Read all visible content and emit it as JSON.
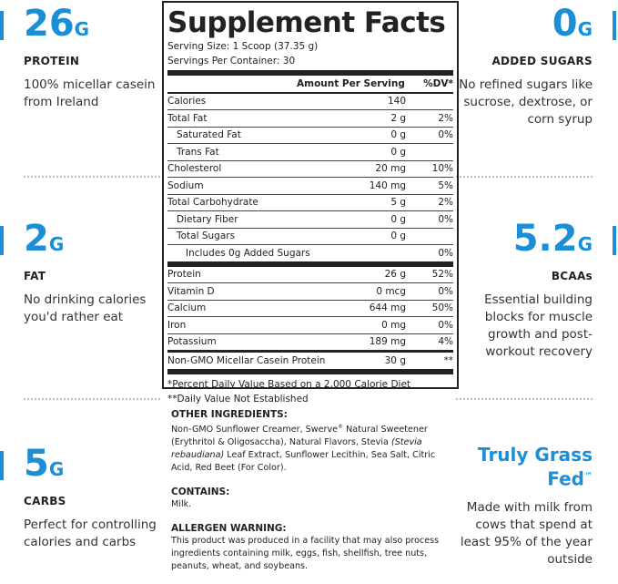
{
  "left": [
    {
      "value": "26",
      "unit": "G",
      "label": "PROTEIN",
      "text": "100% micellar casein from Ireland"
    },
    {
      "value": "2",
      "unit": "G",
      "label": "FAT",
      "text": "No drinking calories you'd rather eat"
    },
    {
      "value": "5",
      "unit": "G",
      "label": "CARBS",
      "text": "Perfect for controlling calories and carbs"
    }
  ],
  "right": [
    {
      "value": "0",
      "unit": "G",
      "label": "ADDED SUGARS",
      "text": "No refined sugars like sucrose, dextrose, or corn syrup"
    },
    {
      "value": "5.2",
      "unit": "G",
      "label": "BCAAs",
      "text": "Essential building blocks for muscle growth and post-workout recovery"
    },
    {
      "title": "Truly Grass Fed",
      "mark": "™",
      "text": "Made with milk from cows that spend at least 95% of the year outside"
    }
  ],
  "facts": {
    "title": "Supplement Facts",
    "serving_size": "Serving Size: 1 Scoop (37.35 g)",
    "servings": "Servings Per Container: 30",
    "header": [
      "Amount Per Serving",
      "%DV*"
    ],
    "groups": [
      [
        {
          "name": "Calories",
          "amount": "140"
        },
        {
          "name": "Total Fat",
          "amount": "2 g",
          "dv": "2%",
          "sub": [
            {
              "name": "Saturated Fat",
              "amount": "0 g",
              "dv": "0%"
            },
            {
              "name": "Trans Fat",
              "amount": "0 g"
            }
          ]
        },
        {
          "name": "Cholesterol",
          "amount": "20 mg",
          "dv": "10%"
        },
        {
          "name": "Sodium",
          "amount": "140 mg",
          "dv": "5%"
        },
        {
          "name": "Total Carbohydrate",
          "amount": "5 g",
          "dv": "2%",
          "sub": [
            {
              "name": "Dietary Fiber",
              "amount": "0 g",
              "dv": "0%"
            },
            {
              "name": "Total Sugars",
              "amount": "0 g",
              "sub": [
                {
                  "name": "Includes 0g Added Sugars",
                  "dv": "0%"
                }
              ]
            }
          ]
        }
      ],
      [
        {
          "name": "Protein",
          "amount": "26 g",
          "dv": "52%"
        },
        {
          "name": "Vitamin D",
          "amount": "0 mcg",
          "dv": "0%"
        },
        {
          "name": "Calcium",
          "amount": "644 mg",
          "dv": "50%"
        },
        {
          "name": "Iron",
          "amount": "0 mg",
          "dv": "0%"
        },
        {
          "name": "Potassium",
          "amount": "189 mg",
          "dv": "4%"
        }
      ],
      [
        {
          "name": "Non-GMO Micellar Casein Protein",
          "amount": "30 g",
          "dv": "**"
        }
      ]
    ],
    "footnotes": [
      "*Percent Daily Value Based on a 2,000 Calorie Diet",
      "**Daily Value Not Established"
    ]
  },
  "other_ingredients": {
    "heading": "OTHER INGREDIENTS:",
    "parts": [
      {
        "text": "Non-GMO Sunflower Creamer, Swerve"
      },
      {
        "text": "®",
        "style": "sup"
      },
      {
        "text": " Natural Sweetener (Erythritol & Oligosaccha), Natural Flavors, Stevia "
      },
      {
        "text": "(Stevia rebaudiana)",
        "style": "italic"
      },
      {
        "text": " Leaf Extract, Sunflower Lecithin, Sea Salt, Citric Acid, Red Beet (For Color)."
      }
    ]
  },
  "contains": {
    "heading": "CONTAINS:",
    "text": "Milk."
  },
  "allergen": {
    "heading": "ALLERGEN WARNING:",
    "text": "This product was produced in a facility that may also process ingredients containing milk, eggs, fish, shellfish, tree nuts, peanuts, wheat, and soybeans."
  }
}
